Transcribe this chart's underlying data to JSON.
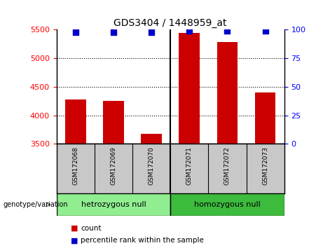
{
  "title": "GDS3404 / 1448959_at",
  "samples": [
    "GSM172068",
    "GSM172069",
    "GSM172070",
    "GSM172071",
    "GSM172072",
    "GSM172073"
  ],
  "counts": [
    4280,
    4250,
    3670,
    5450,
    5280,
    4400
  ],
  "percentile_ranks": [
    98,
    98,
    98,
    99,
    99,
    99
  ],
  "ylim_left": [
    3500,
    5500
  ],
  "ylim_right": [
    0,
    100
  ],
  "yticks_left": [
    3500,
    4000,
    4500,
    5000,
    5500
  ],
  "yticks_right": [
    0,
    25,
    50,
    75,
    100
  ],
  "bar_color": "#cc0000",
  "dot_color": "#0000cc",
  "bg_color_fig": "#ffffff",
  "label_bg_color": "#c8c8c8",
  "group1_label": "hetrozygous null",
  "group2_label": "homozygous null",
  "group1_color": "#90ee90",
  "group2_color": "#3dbb3d",
  "genotype_label": "genotype/variation",
  "legend_count": "count",
  "legend_percentile": "percentile rank within the sample",
  "bar_width": 0.55,
  "dot_size": 35,
  "n_groups": 6,
  "group_split": 3
}
